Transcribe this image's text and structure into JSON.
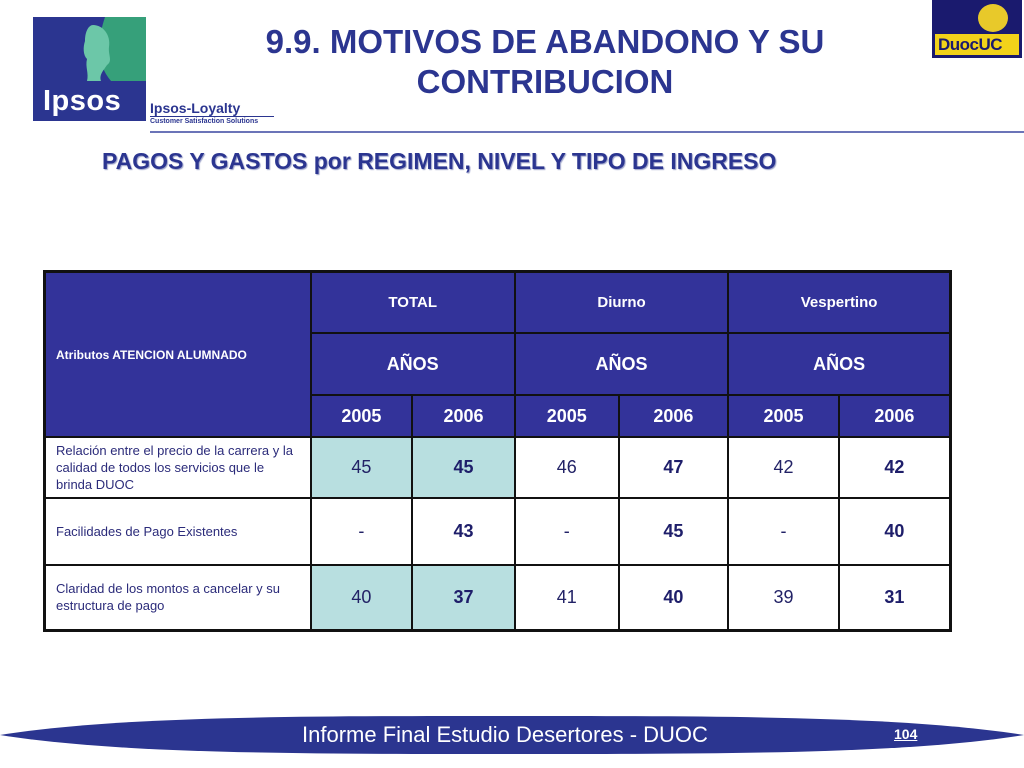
{
  "logos": {
    "ipsos_word": "Ipsos",
    "loyalty_title": "Ipsos-Loyalty",
    "loyalty_sub": "Customer Satisfaction Solutions",
    "duoc_word": "DuocUC"
  },
  "header": {
    "title_line1": "9.9. MOTIVOS DE ABANDONO Y SU",
    "title_line2": "CONTRIBUCION",
    "subtitle": "PAGOS Y GASTOS por REGIMEN, NIVEL Y TIPO DE INGRESO"
  },
  "table": {
    "attr_header": "Atributos ATENCION ALUMNADO",
    "groups": [
      {
        "label": "TOTAL",
        "sub": "AÑOS",
        "years": [
          "2005",
          "2006"
        ]
      },
      {
        "label": "Diurno",
        "sub": "AÑOS",
        "years": [
          "2005",
          "2006"
        ]
      },
      {
        "label": "Vespertino",
        "sub": "AÑOS",
        "years": [
          "2005",
          "2006"
        ]
      }
    ],
    "rows": [
      {
        "label": "Relación entre el precio de la carrera y la calidad de todos los servicios que le brinda DUOC",
        "values": [
          "45",
          "45",
          "46",
          "47",
          "42",
          "42"
        ]
      },
      {
        "label": "Facilidades de Pago Existentes",
        "values": [
          "-",
          "43",
          "-",
          "45",
          "-",
          "40"
        ]
      },
      {
        "label": "Claridad de los montos a cancelar y su estructura de pago",
        "values": [
          "40",
          "37",
          "41",
          "40",
          "39",
          "31"
        ]
      }
    ]
  },
  "footer": {
    "text": "Informe Final Estudio Desertores - DUOC",
    "page": "104"
  },
  "colors": {
    "brand_blue": "#2b3590",
    "header_fill": "#33339a",
    "highlight_teal": "#b8dfe0"
  }
}
